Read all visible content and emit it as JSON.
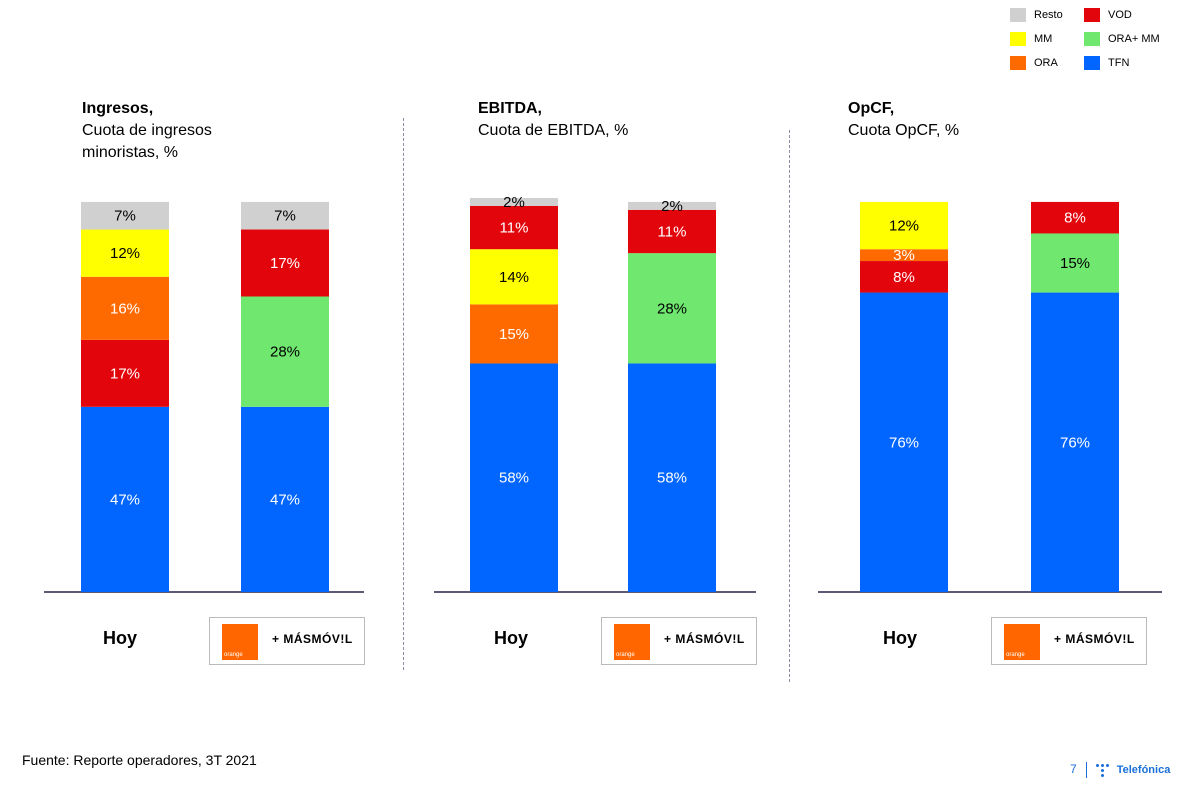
{
  "legend": [
    {
      "label": "Resto",
      "color": "#d0d0d0"
    },
    {
      "label": "VOD",
      "color": "#e3050c"
    },
    {
      "label": "MM",
      "color": "#ffff00"
    },
    {
      "label": "ORA+ MM",
      "color": "#70e870"
    },
    {
      "label": "ORA",
      "color": "#ff6a00"
    },
    {
      "label": "TFN",
      "color": "#0066ff"
    }
  ],
  "chart_data": [
    {
      "type": "bar",
      "stacked": true,
      "title": "Ingresos,",
      "subtitle": "Cuota de ingresos minoristas, %",
      "categories": [
        "Hoy",
        "Orange + MásMóvil"
      ],
      "series": [
        {
          "name": "TFN",
          "values": [
            47,
            47
          ]
        },
        {
          "name": "VOD",
          "values": [
            17,
            17
          ]
        },
        {
          "name": "ORA",
          "values": [
            16,
            null
          ]
        },
        {
          "name": "ORA+ MM",
          "values": [
            null,
            28
          ]
        },
        {
          "name": "MM",
          "values": [
            12,
            null
          ]
        },
        {
          "name": "Resto",
          "values": [
            7,
            7
          ]
        }
      ],
      "stack_order": [
        [
          "TFN",
          "VOD",
          "ORA",
          "MM",
          "Resto"
        ],
        [
          "TFN",
          "ORA+ MM",
          "VOD",
          "Resto"
        ]
      ],
      "labels": [
        [
          "47%",
          "17%",
          "16%",
          "12%",
          "7%"
        ],
        [
          "47%",
          "28%",
          "17%",
          "7%"
        ]
      ],
      "ylim": [
        0,
        100
      ]
    },
    {
      "type": "bar",
      "stacked": true,
      "title": "EBITDA,",
      "subtitle": "Cuota de EBITDA, %",
      "categories": [
        "Hoy",
        "Orange + MásMóvil"
      ],
      "series": [
        {
          "name": "TFN",
          "values": [
            58,
            58
          ]
        },
        {
          "name": "ORA",
          "values": [
            15,
            null
          ]
        },
        {
          "name": "MM",
          "values": [
            14,
            null
          ]
        },
        {
          "name": "ORA+ MM",
          "values": [
            null,
            28
          ]
        },
        {
          "name": "VOD",
          "values": [
            11,
            11
          ]
        },
        {
          "name": "Resto",
          "values": [
            2,
            2
          ]
        }
      ],
      "stack_order": [
        [
          "TFN",
          "ORA",
          "MM",
          "VOD",
          "Resto"
        ],
        [
          "TFN",
          "ORA+ MM",
          "VOD",
          "Resto"
        ]
      ],
      "labels": [
        [
          "58%",
          "15%",
          "14%",
          "11%",
          "2%"
        ],
        [
          "58%",
          "28%",
          "11%",
          "2%"
        ]
      ],
      "ylim": [
        0,
        100
      ]
    },
    {
      "type": "bar",
      "stacked": true,
      "title": "OpCF,",
      "subtitle": "Cuota OpCF, %",
      "categories": [
        "Hoy",
        "Orange + MásMóvil"
      ],
      "series": [
        {
          "name": "TFN",
          "values": [
            76,
            76
          ]
        },
        {
          "name": "VOD",
          "values": [
            8,
            8
          ]
        },
        {
          "name": "ORA",
          "values": [
            3,
            null
          ]
        },
        {
          "name": "MM",
          "values": [
            12,
            null
          ]
        },
        {
          "name": "ORA+ MM",
          "values": [
            null,
            15
          ]
        }
      ],
      "stack_order": [
        [
          "TFN",
          "VOD",
          "ORA",
          "MM"
        ],
        [
          "TFN",
          "ORA+ MM",
          "VOD"
        ]
      ],
      "labels": [
        [
          "76%",
          "8%",
          "3%",
          "12%"
        ],
        [
          "76%",
          "15%",
          "8%"
        ]
      ],
      "ylim": [
        0,
        100
      ]
    }
  ],
  "panels": [
    {
      "title": "Ingresos,",
      "subtitle_1": "Cuota de ingresos",
      "subtitle_2": "minoristas, %"
    },
    {
      "title": "EBITDA,",
      "subtitle_1": "Cuota de EBITDA, %",
      "subtitle_2": ""
    },
    {
      "title": "OpCF,",
      "subtitle_1": "Cuota OpCF, %",
      "subtitle_2": ""
    }
  ],
  "xlabel_today": "Hoy",
  "merger_logo": {
    "orange_text": "orange",
    "text": "+ MÁSMÓV!L"
  },
  "footer": {
    "source": "Fuente: Reporte operadores, 3T 2021"
  },
  "brand": {
    "page": "7",
    "name": "Telefónica"
  },
  "colors": {
    "Resto": "#d0d0d0",
    "VOD": "#e3050c",
    "MM": "#ffff00",
    "ORA+ MM": "#70e870",
    "ORA": "#ff6a00",
    "TFN": "#0066ff"
  }
}
